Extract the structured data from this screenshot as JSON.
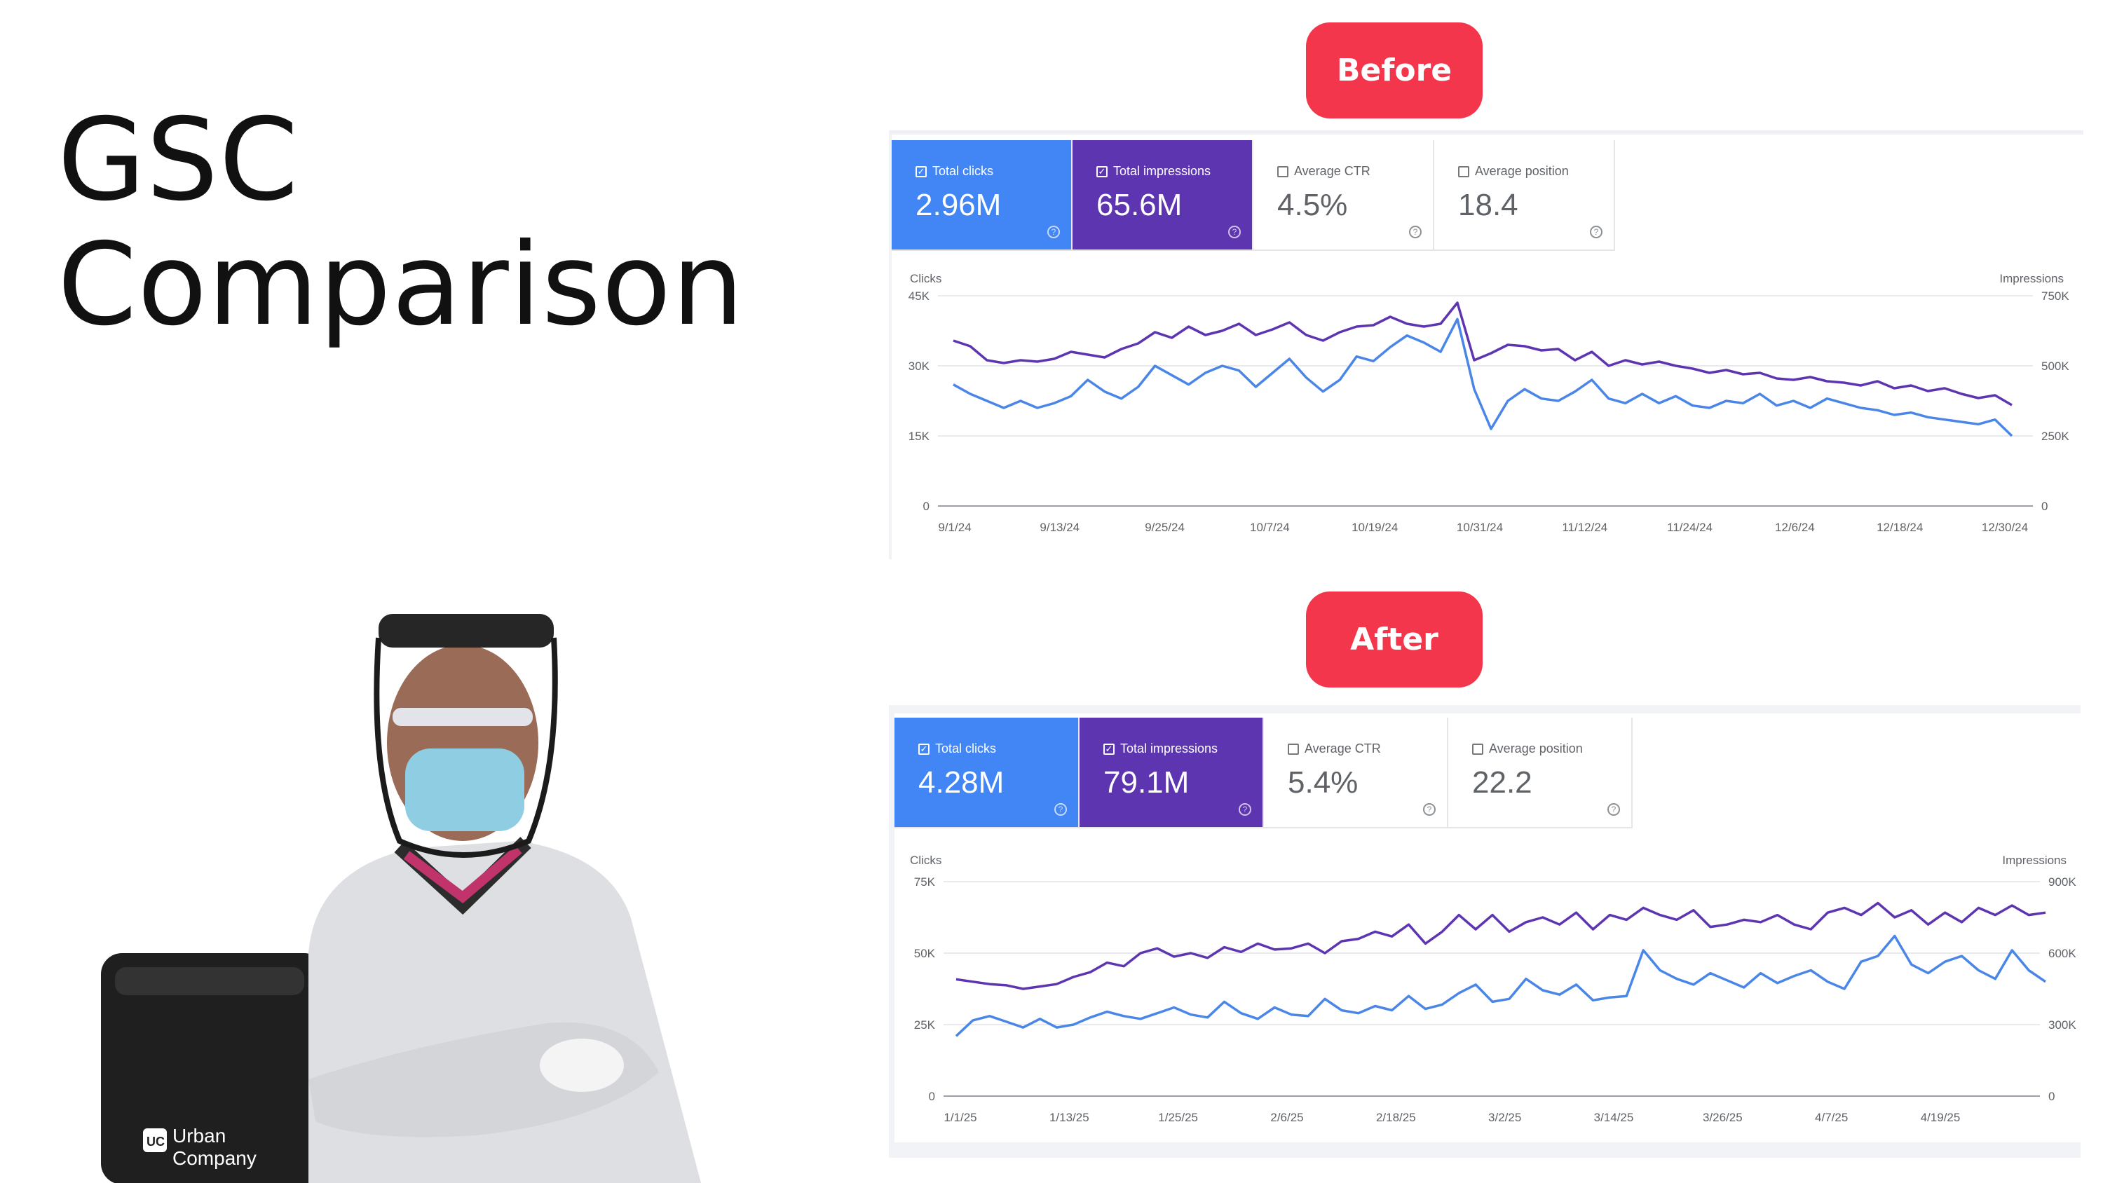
{
  "slide": {
    "title_line1": "GSC",
    "title_line2": "Comparison"
  },
  "before": {
    "label": "Before",
    "metrics": [
      {
        "label": "Total clicks",
        "value": "2.96M",
        "checked": true
      },
      {
        "label": "Total impressions",
        "value": "65.6M",
        "checked": true
      },
      {
        "label": "Average CTR",
        "value": "4.5%",
        "checked": false
      },
      {
        "label": "Average position",
        "value": "18.4",
        "checked": false
      }
    ],
    "left_axis_title": "Clicks",
    "right_axis_title": "Impressions"
  },
  "after": {
    "label": "After",
    "metrics": [
      {
        "label": "Total clicks",
        "value": "4.28M",
        "checked": true
      },
      {
        "label": "Total impressions",
        "value": "79.1M",
        "checked": true
      },
      {
        "label": "Average CTR",
        "value": "5.4%",
        "checked": false
      },
      {
        "label": "Average position",
        "value": "22.2",
        "checked": false
      }
    ],
    "left_axis_title": "Clicks",
    "right_axis_title": "Impressions"
  },
  "photo": {
    "logo_uc": "UC",
    "logo_line1": "Urban",
    "logo_line2": "Company"
  },
  "colors": {
    "clicks": "#4a86e8",
    "impressions": "#5e35b1",
    "pill": "#f4364c"
  },
  "chart_data": [
    {
      "type": "line",
      "id": "before",
      "x_labels": [
        "9/1/24",
        "9/13/24",
        "9/25/24",
        "10/7/24",
        "10/19/24",
        "10/31/24",
        "11/12/24",
        "11/24/24",
        "12/6/24",
        "12/18/24",
        "12/30/24"
      ],
      "left_ticks": [
        "45K",
        "30K",
        "15K",
        "0"
      ],
      "right_ticks": [
        "750K",
        "500K",
        "250K",
        "0"
      ],
      "ylim_left": [
        0,
        45000
      ],
      "ylim_right": [
        0,
        750000
      ],
      "series": [
        {
          "name": "Clicks",
          "axis": "left",
          "values": [
            26000,
            24000,
            22500,
            21000,
            22500,
            21000,
            22000,
            23500,
            27000,
            24500,
            23000,
            25500,
            30000,
            28000,
            26000,
            28500,
            30000,
            29000,
            25500,
            28500,
            31500,
            27500,
            24500,
            27000,
            32000,
            31000,
            34000,
            36500,
            35000,
            33000,
            40000,
            25000,
            16500,
            22500,
            25000,
            23000,
            22500,
            24500,
            27000,
            23000,
            22000,
            24000,
            22000,
            23500,
            21500,
            21000,
            22500,
            22000,
            24000,
            21500,
            22500,
            21000,
            23000,
            22000,
            21000,
            20500,
            19500,
            20000,
            19000,
            18500,
            18000,
            17500,
            18500,
            15000
          ]
        },
        {
          "name": "Impressions",
          "axis": "right",
          "values": [
            590000,
            570000,
            520000,
            510000,
            520000,
            515000,
            525000,
            550000,
            540000,
            530000,
            560000,
            580000,
            620000,
            600000,
            640000,
            610000,
            625000,
            650000,
            610000,
            630000,
            655000,
            610000,
            590000,
            620000,
            640000,
            645000,
            675000,
            650000,
            640000,
            650000,
            725000,
            520000,
            545000,
            575000,
            570000,
            555000,
            560000,
            520000,
            550000,
            500000,
            520000,
            505000,
            515000,
            500000,
            490000,
            475000,
            485000,
            470000,
            475000,
            455000,
            450000,
            460000,
            445000,
            440000,
            430000,
            445000,
            420000,
            430000,
            410000,
            420000,
            400000,
            385000,
            395000,
            360000
          ]
        }
      ]
    },
    {
      "type": "line",
      "id": "after",
      "x_labels": [
        "1/1/25",
        "1/13/25",
        "1/25/25",
        "2/6/25",
        "2/18/25",
        "3/2/25",
        "3/14/25",
        "3/26/25",
        "4/7/25",
        "4/19/25"
      ],
      "left_ticks": [
        "75K",
        "50K",
        "25K",
        "0"
      ],
      "right_ticks": [
        "900K",
        "600K",
        "300K",
        "0"
      ],
      "ylim_left": [
        0,
        75000
      ],
      "ylim_right": [
        0,
        900000
      ],
      "series": [
        {
          "name": "Clicks",
          "axis": "left",
          "values": [
            21000,
            26500,
            28000,
            26000,
            24000,
            27000,
            24000,
            25000,
            27500,
            29500,
            28000,
            27000,
            29000,
            31000,
            28500,
            27500,
            33000,
            29000,
            27000,
            31000,
            28500,
            28000,
            34000,
            30000,
            29000,
            31500,
            30000,
            35000,
            30500,
            32000,
            36000,
            39000,
            33000,
            34000,
            41000,
            37000,
            35500,
            39000,
            33500,
            34500,
            35000,
            51000,
            44000,
            41000,
            39000,
            43000,
            40500,
            38000,
            43000,
            39500,
            42000,
            44000,
            40000,
            37500,
            47000,
            49000,
            56000,
            46000,
            43000,
            47000,
            49000,
            44000,
            41000,
            51000,
            44000,
            40000
          ]
        },
        {
          "name": "Impressions",
          "axis": "right",
          "values": [
            490000,
            480000,
            470000,
            465000,
            450000,
            460000,
            470000,
            500000,
            520000,
            560000,
            545000,
            600000,
            620000,
            585000,
            600000,
            580000,
            625000,
            605000,
            640000,
            615000,
            620000,
            640000,
            600000,
            650000,
            660000,
            690000,
            670000,
            720000,
            640000,
            690000,
            760000,
            700000,
            760000,
            690000,
            730000,
            750000,
            720000,
            770000,
            700000,
            760000,
            740000,
            790000,
            760000,
            740000,
            780000,
            710000,
            720000,
            740000,
            730000,
            760000,
            720000,
            700000,
            770000,
            790000,
            760000,
            810000,
            750000,
            780000,
            720000,
            770000,
            730000,
            790000,
            760000,
            800000,
            760000,
            770000
          ]
        }
      ]
    }
  ]
}
